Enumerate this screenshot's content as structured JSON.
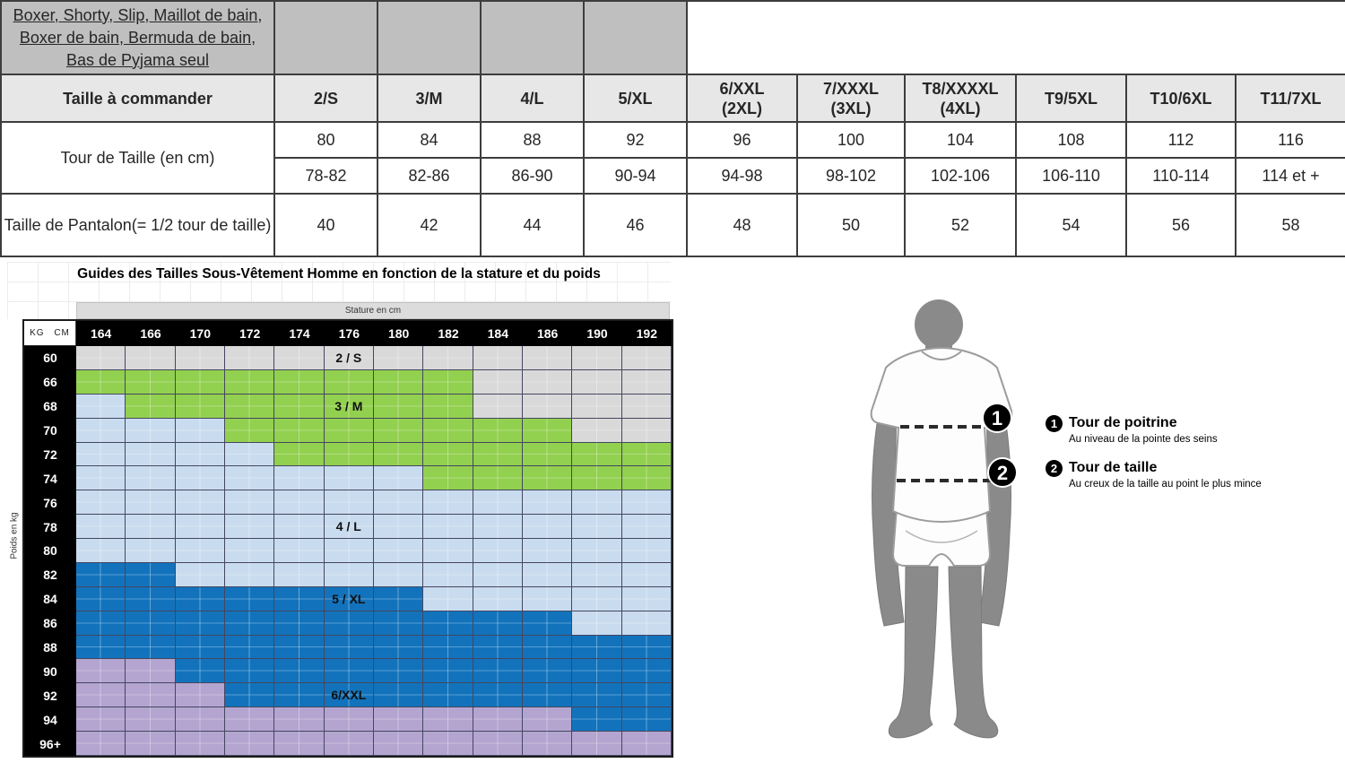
{
  "colors": {
    "red": "#cc3333",
    "table_header_gray": "#bfbfbf",
    "table_subheader_gray": "#e7e7e7",
    "zone_gray": "#d9d9d9",
    "zone_green": "#92d04f",
    "zone_lightblue": "#c9dcef",
    "zone_darkblue": "#1273bc",
    "zone_purple": "#b3a5d0"
  },
  "top_table": {
    "product_lines": [
      "Boxer, Shorty, Slip, Maillot de bain,",
      "Boxer de bain, Bermuda de bain,",
      "Bas de Pyjama seul"
    ],
    "order_label": "Taille à commander",
    "sizes": [
      {
        "l1": "2/S",
        "l2": ""
      },
      {
        "l1": "3/M",
        "l2": ""
      },
      {
        "l1": "4/L",
        "l2": ""
      },
      {
        "l1": "5/XL",
        "l2": ""
      },
      {
        "l1": "6/XXL",
        "l2": "(2XL)"
      },
      {
        "l1": "7/XXXL",
        "l2": "(3XL)"
      },
      {
        "l1": "T8/XXXXL",
        "l2": "(4XL)"
      },
      {
        "l1": "T9/5XL",
        "l2": ""
      },
      {
        "l1": "T10/6XL",
        "l2": ""
      },
      {
        "l1": "T11/7XL",
        "l2": ""
      }
    ]
  },
  "chart": {
    "title": "Guides des Tailles Sous-Vêtement Homme en fonction de la stature et du poids",
    "xlabel": "Stature en cm",
    "ylabel": "Poids en kg",
    "corner_label": "KG CM"
  },
  "chart_data": [
    {
      "type": "table",
      "title": "Boxer, Shorty, Slip, Maillot de bain, Boxer de bain, Bermuda de bain, Bas de Pyjama seul",
      "columns": [
        "2/S",
        "3/M",
        "4/L",
        "5/XL",
        "6/XXL (2XL)",
        "7/XXXL (3XL)",
        "T8/XXXXL (4XL)",
        "T9/5XL",
        "T10/6XL",
        "T11/7XL"
      ],
      "rows": [
        {
          "label": "Tour de Taille (en cm)",
          "values": [
            80,
            84,
            88,
            92,
            96,
            100,
            104,
            108,
            112,
            116
          ],
          "ranges": [
            "78-82",
            "82-86",
            "86-90",
            "90-94",
            "94-98",
            "98-102",
            "102-106",
            "106-110",
            "110-114",
            "114 et +"
          ]
        },
        {
          "label": "Taille de Pantalon(= 1/2 tour de taille)",
          "values": [
            40,
            42,
            44,
            46,
            48,
            50,
            52,
            54,
            56,
            58
          ]
        }
      ]
    },
    {
      "type": "heatmap",
      "title": "Guides des Tailles Sous-Vêtement Homme en fonction de la stature et du poids",
      "xlabel": "Stature en cm",
      "ylabel": "Poids en kg",
      "x": [
        "164",
        "166",
        "170",
        "172",
        "174",
        "176",
        "180",
        "182",
        "184",
        "186",
        "190",
        "192"
      ],
      "y": [
        "60",
        "66",
        "68",
        "70",
        "72",
        "74",
        "76",
        "78",
        "80",
        "82",
        "84",
        "86",
        "88",
        "90",
        "92",
        "94",
        "96+"
      ],
      "zone_codes": {
        "G": "2/S",
        "V": "3/M",
        "L": "4/L",
        "D": "5/XL",
        "P": "6/XXL"
      },
      "rows": [
        "GGGGGGGGGGGG",
        "VVVVVVVVGGGG",
        "LVVVVVVVGGGG",
        "LLLVVVVVVVGG",
        "LLLLVVVVVVVV",
        "LLLLLLLVVVVV",
        "LLLLLLLLLLLL",
        "LLLLLLLLLLLL",
        "LLLLLLLLLLLL",
        "DDLLLLLLLLLL",
        "DDDDDDDLLLLL",
        "DDDDDDDDDDLL",
        "DDDDDDDDDDDD",
        "PPDDDDDDDDDD",
        "PPPDDDDDDDDD",
        "PPPPPPPPPPDD",
        "PPPPPPPPPPPP"
      ],
      "zone_labels": [
        {
          "row": 0,
          "col": 5,
          "text": "2 / S"
        },
        {
          "row": 2,
          "col": 5,
          "text": "3 / M"
        },
        {
          "row": 7,
          "col": 5,
          "text": "4 / L"
        },
        {
          "row": 10,
          "col": 5,
          "text": "5 / XL"
        },
        {
          "row": 14,
          "col": 5,
          "text": "6/XXL"
        }
      ]
    }
  ],
  "figure": {
    "annotations": [
      {
        "num": "1",
        "title": "Tour de poitrine",
        "sub": "Au niveau de la pointe des seins"
      },
      {
        "num": "2",
        "title": "Tour de taille",
        "sub": "Au creux de la taille au point le plus mince"
      }
    ]
  }
}
